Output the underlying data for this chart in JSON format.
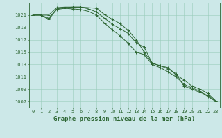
{
  "xlabel": "Graphe pression niveau de la mer (hPa)",
  "background_color": "#cce8e8",
  "grid_color": "#99ccbb",
  "line_color": "#2d6633",
  "x": [
    0,
    1,
    2,
    3,
    4,
    5,
    6,
    7,
    8,
    9,
    10,
    11,
    12,
    13,
    14,
    15,
    16,
    17,
    18,
    19,
    20,
    21,
    22,
    23
  ],
  "series": [
    [
      1021.0,
      1021.0,
      1021.0,
      1022.2,
      1022.3,
      1022.3,
      1022.3,
      1022.2,
      1022.1,
      1021.1,
      1020.3,
      1019.6,
      1018.5,
      1017.0,
      1015.0,
      1013.2,
      1012.8,
      1012.3,
      1011.5,
      1009.5,
      1009.0,
      1008.5,
      1008.0,
      1007.0
    ],
    [
      1021.0,
      1021.0,
      1020.3,
      1021.9,
      1022.1,
      1022.0,
      1021.9,
      1021.6,
      1021.0,
      1019.7,
      1018.6,
      1017.6,
      1016.4,
      1015.0,
      1014.6,
      1013.0,
      1012.5,
      1011.8,
      1011.0,
      1009.8,
      1009.2,
      1008.7,
      1007.8,
      1007.0
    ],
    [
      1021.0,
      1021.0,
      1020.5,
      1022.0,
      1022.2,
      1022.3,
      1022.3,
      1022.0,
      1021.5,
      1020.5,
      1019.5,
      1018.8,
      1018.0,
      1016.5,
      1015.8,
      1013.2,
      1012.8,
      1012.5,
      1011.3,
      1010.5,
      1009.5,
      1009.0,
      1008.3,
      1007.1
    ]
  ],
  "ylim": [
    1006.0,
    1023.0
  ],
  "yticks": [
    1007,
    1009,
    1011,
    1013,
    1015,
    1017,
    1019,
    1021
  ],
  "xlim": [
    -0.5,
    23.5
  ],
  "xticks": [
    0,
    1,
    2,
    3,
    4,
    5,
    6,
    7,
    8,
    9,
    10,
    11,
    12,
    13,
    14,
    15,
    16,
    17,
    18,
    19,
    20,
    21,
    22,
    23
  ],
  "figsize": [
    3.2,
    2.0
  ],
  "dpi": 100,
  "tick_fontsize": 5.0,
  "xlabel_fontsize": 6.5
}
